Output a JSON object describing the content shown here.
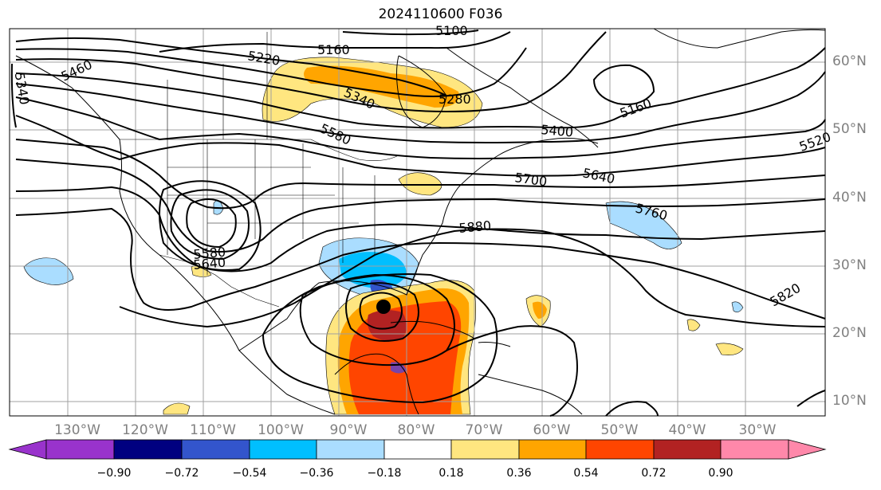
{
  "title": "2024110600 F036",
  "lat_labels": [
    "60°N",
    "50°N",
    "40°N",
    "30°N",
    "20°N",
    "10°N"
  ],
  "lon_labels": [
    "130°W",
    "120°W",
    "110°W",
    "100°W",
    "90°W",
    "80°W",
    "70°W",
    "60°W",
    "50°W",
    "40°W",
    "30°W"
  ],
  "contour_labels": [
    "5340",
    "5460",
    "5220",
    "5160",
    "5100",
    "5340",
    "5280",
    "5580",
    "5160",
    "5400",
    "5520",
    "5700",
    "5640",
    "5760",
    "5880",
    "5580",
    "5640",
    "5820"
  ],
  "colorbar": {
    "ticks": [
      "−0.90",
      "−0.72",
      "−0.54",
      "−0.36",
      "−0.18",
      "0.18",
      "0.36",
      "0.54",
      "0.72",
      "0.90"
    ],
    "colors": [
      "#9933cc",
      "#000080",
      "#3355cc",
      "#00bfff",
      "#aaddff",
      "#ffffff",
      "#ffe680",
      "#ffa500",
      "#ff4500",
      "#b22222",
      "#ff88aa"
    ]
  },
  "marker": "storm-center"
}
